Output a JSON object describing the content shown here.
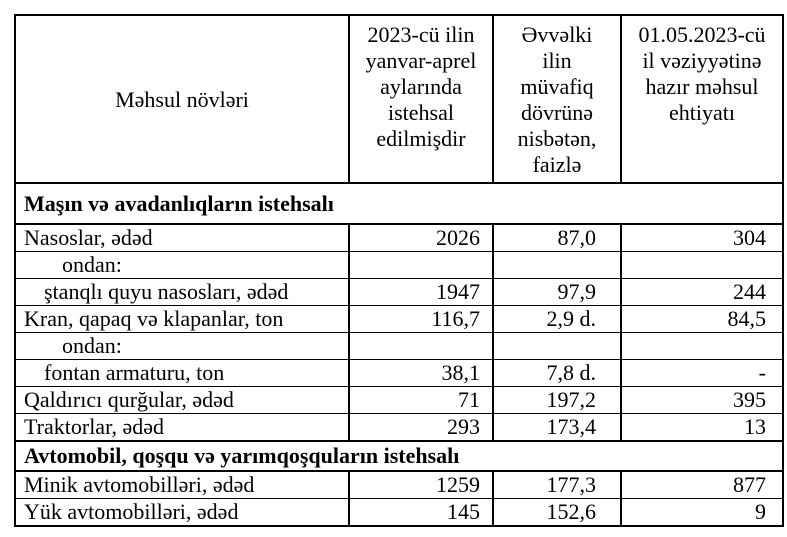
{
  "table": {
    "columns": [
      {
        "id": "product",
        "label": "Məhsul növləri"
      },
      {
        "id": "produced",
        "label": "2023-cü ilin\nyanvar-aprel\naylarında\nistehsal\nedilmişdir"
      },
      {
        "id": "percent",
        "label": "Əvvəlki\nilin\nmüvafiq\ndövrünə\nnisbətən,\nfaizlə"
      },
      {
        "id": "stock",
        "label": "01.05.2023-cü\nil vəziyyətinə\nhazır məhsul\nehtiyatı"
      }
    ],
    "rows": [
      {
        "type": "section",
        "tall": true,
        "label": "Maşın və avadanlıqların istehsalı"
      },
      {
        "type": "data",
        "indent": 0,
        "label": "Nasoslar, ədəd",
        "produced": "2026",
        "percent": "87,0",
        "stock": "304"
      },
      {
        "type": "data",
        "indent": 2,
        "label": "ondan:",
        "produced": "",
        "percent": "",
        "stock": ""
      },
      {
        "type": "data",
        "indent": 1,
        "label": "ştanqlı quyu nasosları, ədəd",
        "produced": "1947",
        "percent": "97,9",
        "stock": "244"
      },
      {
        "type": "data",
        "indent": 0,
        "label": "Kran, qapaq və klapanlar, ton",
        "produced": "116,7",
        "percent": "2,9 d.",
        "stock": "84,5"
      },
      {
        "type": "data",
        "indent": 2,
        "label": "ondan:",
        "produced": "",
        "percent": "",
        "stock": ""
      },
      {
        "type": "data",
        "indent": 1,
        "label": "fontan armaturu, ton",
        "produced": "38,1",
        "percent": "7,8 d.",
        "stock": "-"
      },
      {
        "type": "data",
        "indent": 0,
        "label": "Qaldırıcı qurğular, ədəd",
        "produced": "71",
        "percent": "197,2",
        "stock": "395"
      },
      {
        "type": "data",
        "indent": 0,
        "label": "Traktorlar, ədəd",
        "produced": "293",
        "percent": "173,4",
        "stock": "13"
      },
      {
        "type": "section",
        "tall": false,
        "label": "Avtomobil, qoşqu və yarımqoşquların istehsalı"
      },
      {
        "type": "data",
        "indent": 0,
        "label": "Minik avtomobilləri, ədəd",
        "produced": "1259",
        "percent": "177,3",
        "stock": "877"
      },
      {
        "type": "data",
        "indent": 0,
        "label": "Yük avtomobilləri, ədəd",
        "produced": "145",
        "percent": "152,6",
        "stock": "9"
      }
    ]
  }
}
